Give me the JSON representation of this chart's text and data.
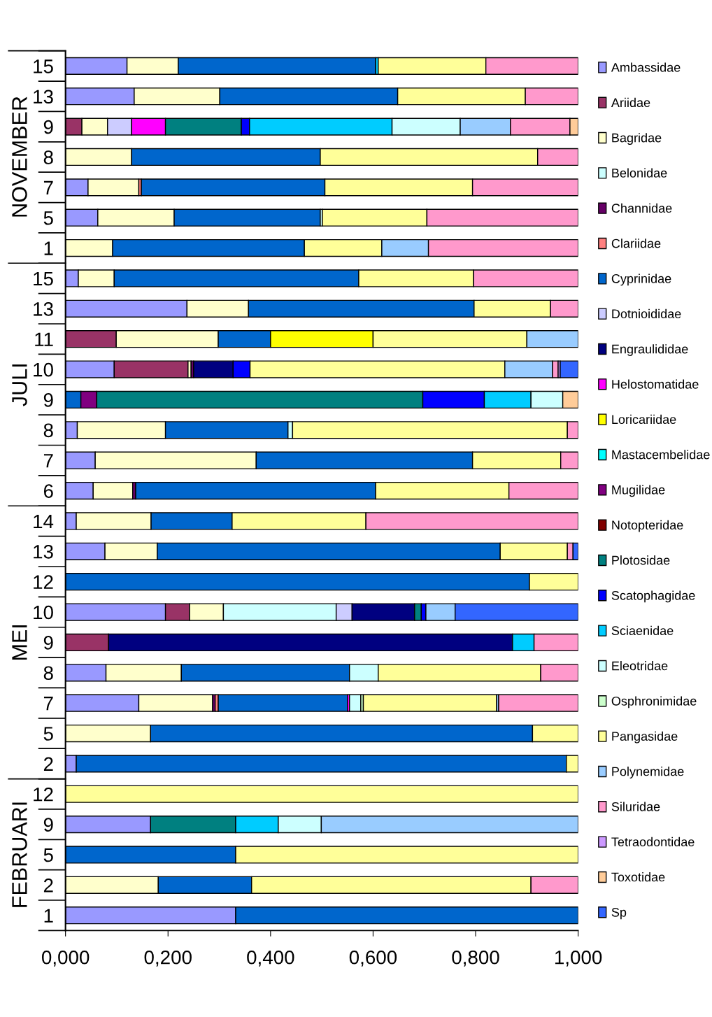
{
  "chart_data": {
    "type": "bar",
    "orientation": "horizontal",
    "stacked": true,
    "legend": "right",
    "grid": false,
    "categories": [
      "15",
      "13",
      "9",
      "8",
      "7",
      "5",
      "1",
      "15",
      "13",
      "11",
      "10",
      "9",
      "8",
      "7",
      "6",
      "14",
      "13",
      "12",
      "10",
      "9",
      "8",
      "7",
      "5",
      "2",
      "12",
      "9",
      "5",
      "2",
      "1"
    ],
    "xlim": [
      0,
      1
    ],
    "xticks": [
      {
        "value": 0,
        "label": "0,000"
      },
      {
        "value": 0.2,
        "label": "0,200"
      },
      {
        "value": 0.4,
        "label": "0,400"
      },
      {
        "value": 0.6,
        "label": "0,600"
      },
      {
        "value": 0.8,
        "label": "0,800"
      },
      {
        "value": 1,
        "label": "1,000"
      }
    ],
    "annotations": [
      "NOVEMBER",
      "JULI",
      "MEI",
      "FEBRUARI"
    ],
    "series": [
      {
        "name": "Ambassidae",
        "color": "#9999ff",
        "values": [
          0.12,
          0.134,
          null,
          null,
          0.044,
          0.063,
          null,
          0.025,
          0.237,
          null,
          0.095,
          null,
          0.023,
          0.058,
          0.054,
          0.021,
          0.077,
          null,
          0.195,
          null,
          0.079,
          0.143,
          null,
          0.021,
          null,
          0.166,
          null,
          null,
          0.332
        ]
      },
      {
        "name": "Ariidae",
        "color": "#993366",
        "values": [
          null,
          null,
          0.032,
          null,
          null,
          null,
          null,
          null,
          null,
          0.099,
          0.144,
          null,
          null,
          null,
          null,
          null,
          null,
          null,
          0.047,
          0.084,
          null,
          null,
          null,
          null,
          null,
          null,
          null,
          null,
          null
        ]
      },
      {
        "name": "Bagridae",
        "color": "#ffffcc",
        "values": [
          0.1,
          0.167,
          0.05,
          0.129,
          0.099,
          0.149,
          0.092,
          0.07,
          0.12,
          0.199,
          0.006,
          null,
          0.172,
          0.314,
          0.077,
          0.146,
          0.102,
          null,
          0.066,
          null,
          0.147,
          0.144,
          0.166,
          null,
          null,
          null,
          null,
          0.181,
          null
        ]
      },
      {
        "name": "Belonidae",
        "color": "#ccffff",
        "values": [
          null,
          null,
          null,
          null,
          null,
          null,
          null,
          null,
          null,
          null,
          null,
          null,
          null,
          null,
          null,
          null,
          null,
          null,
          0.22,
          null,
          null,
          null,
          null,
          null,
          null,
          null,
          null,
          null,
          null
        ]
      },
      {
        "name": "Channidae",
        "color": "#660066",
        "values": [
          null,
          null,
          null,
          null,
          null,
          null,
          null,
          null,
          null,
          null,
          0.005,
          null,
          null,
          null,
          0.006,
          null,
          null,
          null,
          null,
          null,
          null,
          0.005,
          null,
          null,
          null,
          null,
          null,
          null,
          null
        ]
      },
      {
        "name": "Clariidae",
        "color": "#ff8080",
        "values": [
          null,
          null,
          null,
          null,
          0.005,
          null,
          null,
          null,
          null,
          null,
          null,
          null,
          null,
          null,
          null,
          null,
          null,
          null,
          null,
          null,
          null,
          0.006,
          null,
          null,
          null,
          null,
          null,
          null,
          null
        ]
      },
      {
        "name": "Cyprinidae",
        "color": "#0066cc",
        "values": [
          0.385,
          0.347,
          null,
          0.368,
          0.358,
          0.285,
          0.374,
          0.477,
          0.44,
          0.102,
          null,
          0.03,
          0.239,
          0.422,
          0.468,
          0.158,
          0.669,
          0.905,
          null,
          null,
          0.328,
          0.252,
          0.745,
          0.956,
          null,
          null,
          0.332,
          0.182,
          0.668
        ]
      },
      {
        "name": "Dotnioididae",
        "color": "#ccccff",
        "values": [
          null,
          null,
          0.047,
          null,
          null,
          null,
          null,
          null,
          null,
          null,
          null,
          null,
          null,
          null,
          null,
          null,
          null,
          null,
          0.031,
          null,
          null,
          null,
          null,
          null,
          null,
          null,
          null,
          null,
          null
        ]
      },
      {
        "name": "Engraulididae",
        "color": "#000080",
        "values": [
          null,
          null,
          null,
          null,
          null,
          null,
          null,
          null,
          null,
          null,
          0.077,
          null,
          null,
          null,
          null,
          null,
          null,
          null,
          0.122,
          0.788,
          null,
          null,
          null,
          null,
          null,
          null,
          null,
          null,
          null
        ]
      },
      {
        "name": "Helostomatidae",
        "color": "#ff00ff",
        "values": [
          null,
          null,
          0.066,
          null,
          null,
          null,
          null,
          null,
          null,
          null,
          null,
          null,
          null,
          null,
          null,
          null,
          null,
          null,
          null,
          null,
          null,
          0.004,
          null,
          null,
          null,
          null,
          null,
          null,
          null
        ]
      },
      {
        "name": "Loricariidae",
        "color": "#ffff00",
        "values": [
          null,
          null,
          null,
          null,
          null,
          null,
          null,
          null,
          null,
          0.2,
          null,
          null,
          null,
          null,
          null,
          null,
          null,
          null,
          null,
          null,
          null,
          null,
          null,
          null,
          null,
          null,
          null,
          null,
          null
        ]
      },
      {
        "name": "Mastacembelidae",
        "color": "#00ffff",
        "values": [
          null,
          null,
          null,
          null,
          null,
          null,
          null,
          null,
          null,
          null,
          null,
          null,
          null,
          null,
          null,
          null,
          null,
          null,
          null,
          null,
          null,
          null,
          null,
          null,
          null,
          null,
          null,
          null,
          null
        ]
      },
      {
        "name": "Mugilidae",
        "color": "#800080",
        "values": [
          null,
          null,
          null,
          null,
          null,
          null,
          null,
          null,
          null,
          null,
          null,
          0.031,
          null,
          null,
          null,
          null,
          null,
          null,
          null,
          null,
          null,
          null,
          null,
          null,
          null,
          null,
          null,
          null,
          null
        ]
      },
      {
        "name": "Notopteridae",
        "color": "#800000",
        "values": [
          null,
          null,
          null,
          null,
          null,
          null,
          null,
          null,
          null,
          null,
          null,
          null,
          null,
          null,
          null,
          null,
          null,
          null,
          null,
          null,
          null,
          null,
          null,
          null,
          null,
          null,
          null,
          null,
          null
        ]
      },
      {
        "name": "Plotosidae",
        "color": "#008080",
        "values": [
          null,
          null,
          0.148,
          null,
          null,
          null,
          null,
          null,
          null,
          null,
          null,
          0.636,
          null,
          null,
          null,
          null,
          null,
          null,
          0.013,
          null,
          null,
          null,
          null,
          null,
          null,
          0.166,
          null,
          null,
          null
        ]
      },
      {
        "name": "Scatophagidae",
        "color": "#0000ff",
        "values": [
          null,
          null,
          0.016,
          null,
          null,
          null,
          null,
          null,
          null,
          null,
          0.033,
          0.12,
          null,
          null,
          null,
          null,
          null,
          null,
          0.009,
          null,
          null,
          null,
          null,
          null,
          null,
          null,
          null,
          null,
          null
        ]
      },
      {
        "name": "Sciaenidae",
        "color": "#00ccff",
        "values": [
          0.005,
          null,
          0.278,
          null,
          null,
          null,
          null,
          null,
          null,
          null,
          null,
          0.091,
          null,
          null,
          null,
          null,
          null,
          null,
          null,
          0.042,
          null,
          null,
          null,
          null,
          null,
          0.083,
          null,
          null,
          null
        ]
      },
      {
        "name": "Eleotridae",
        "color": "#ccffff",
        "values": [
          null,
          null,
          0.133,
          null,
          null,
          0.004,
          null,
          null,
          null,
          null,
          null,
          0.062,
          0.009,
          null,
          null,
          null,
          null,
          null,
          null,
          null,
          0.056,
          0.022,
          null,
          null,
          null,
          0.084,
          null,
          null,
          null
        ]
      },
      {
        "name": "Osphronimidae",
        "color": "#ccffcc",
        "values": [
          null,
          null,
          null,
          null,
          null,
          null,
          null,
          null,
          null,
          null,
          null,
          null,
          null,
          null,
          null,
          null,
          null,
          null,
          null,
          null,
          null,
          0.005,
          null,
          null,
          null,
          null,
          null,
          null,
          null
        ]
      },
      {
        "name": "Pangasidae",
        "color": "#ffff99",
        "values": [
          0.21,
          0.249,
          null,
          0.424,
          0.288,
          0.204,
          0.151,
          0.224,
          0.149,
          0.3,
          0.497,
          null,
          0.536,
          0.172,
          0.26,
          0.261,
          0.131,
          0.095,
          null,
          null,
          0.317,
          0.26,
          0.089,
          0.023,
          1.0,
          null,
          0.668,
          0.545,
          null
        ]
      },
      {
        "name": "Polynemidae",
        "color": "#99ccff",
        "values": [
          null,
          null,
          0.098,
          null,
          null,
          null,
          0.091,
          null,
          null,
          0.1,
          0.093,
          null,
          null,
          null,
          null,
          null,
          null,
          null,
          0.057,
          null,
          null,
          0.004,
          null,
          null,
          null,
          0.501,
          null,
          null,
          null
        ]
      },
      {
        "name": "Siluridae",
        "color": "#ff99cc",
        "values": [
          0.18,
          0.103,
          0.116,
          0.079,
          0.206,
          0.295,
          0.292,
          0.204,
          0.054,
          null,
          0.011,
          null,
          0.021,
          0.034,
          0.135,
          0.414,
          0.011,
          null,
          null,
          0.086,
          0.073,
          0.155,
          null,
          null,
          null,
          null,
          null,
          0.092,
          null
        ]
      },
      {
        "name": "Tetraodontidae",
        "color": "#cc99ff",
        "values": [
          null,
          null,
          null,
          null,
          null,
          null,
          null,
          null,
          null,
          null,
          0.004,
          null,
          null,
          null,
          null,
          null,
          null,
          null,
          null,
          null,
          null,
          null,
          null,
          null,
          null,
          null,
          null,
          null,
          null
        ]
      },
      {
        "name": "Toxotidae",
        "color": "#ffcc99",
        "values": [
          null,
          null,
          0.016,
          null,
          null,
          null,
          null,
          null,
          null,
          null,
          null,
          0.03,
          null,
          null,
          null,
          null,
          null,
          null,
          null,
          null,
          null,
          null,
          null,
          null,
          null,
          null,
          null,
          null,
          null
        ]
      },
      {
        "name": "Sp",
        "color": "#3366ff",
        "values": [
          null,
          null,
          null,
          null,
          null,
          null,
          null,
          null,
          null,
          null,
          0.035,
          null,
          null,
          null,
          null,
          null,
          0.01,
          null,
          0.24,
          null,
          null,
          null,
          null,
          null,
          null,
          null,
          null,
          null,
          null
        ]
      }
    ]
  }
}
